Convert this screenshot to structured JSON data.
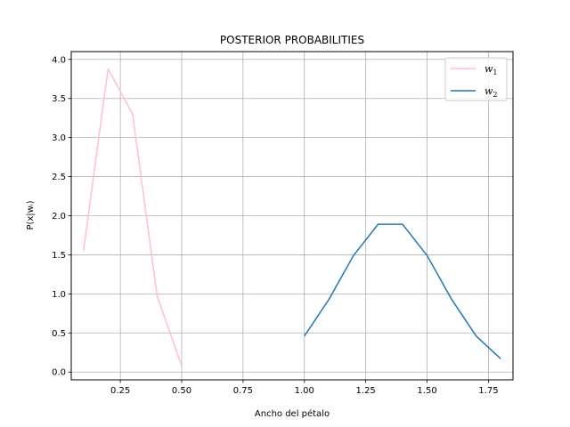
{
  "chart_data": {
    "type": "line",
    "title": "POSTERIOR PROBABILITIES",
    "xlabel": "Ancho del pétalo",
    "ylabel": "P(x|wᵢ)",
    "xlim": [
      0.05,
      1.85
    ],
    "ylim": [
      -0.1,
      4.1
    ],
    "xticks": [
      0.25,
      0.5,
      0.75,
      1.0,
      1.25,
      1.5,
      1.75
    ],
    "xtick_labels": [
      "0.25",
      "0.50",
      "0.75",
      "1.00",
      "1.25",
      "1.50",
      "1.75"
    ],
    "yticks": [
      0.0,
      0.5,
      1.0,
      1.5,
      2.0,
      2.5,
      3.0,
      3.5,
      4.0
    ],
    "ytick_labels": [
      "0.0",
      "0.5",
      "1.0",
      "1.5",
      "2.0",
      "2.5",
      "3.0",
      "3.5",
      "4.0"
    ],
    "grid": true,
    "legend_position": "top-right",
    "series": [
      {
        "name": "w1",
        "legend_base": "w",
        "legend_sub": "1",
        "color": "#ffc0cb",
        "x": [
          0.1,
          0.2,
          0.3,
          0.4,
          0.5
        ],
        "y": [
          1.55,
          3.88,
          3.3,
          0.97,
          0.08
        ]
      },
      {
        "name": "w2",
        "legend_base": "w",
        "legend_sub": "2",
        "color": "#1f77b4",
        "x": [
          1.0,
          1.1,
          1.2,
          1.3,
          1.4,
          1.5,
          1.6,
          1.7,
          1.8
        ],
        "y": [
          0.46,
          0.93,
          1.49,
          1.89,
          1.89,
          1.49,
          0.93,
          0.46,
          0.17
        ]
      }
    ]
  }
}
